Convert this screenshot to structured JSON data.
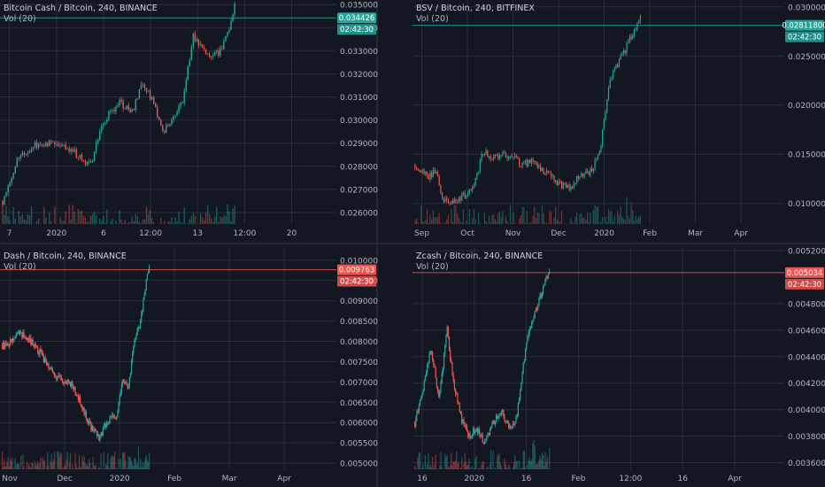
{
  "colors": {
    "background": "#131722",
    "grid": "#2a2e39",
    "text": "#b2b5be",
    "up": "#26a69a",
    "down": "#ef5350",
    "panel_border": "#363a45"
  },
  "chart_data": [
    {
      "type": "candlestick",
      "title": "Bitcoin Cash / Bitcoin, 240, BINANCE",
      "indicator": "Vol (20)",
      "accent": "#26a69a",
      "last_price": "0.034426",
      "countdown": "02:42:30",
      "ylim": [
        0.0255,
        0.0352
      ],
      "yticks": [
        "0.035000",
        "0.034000",
        "0.033000",
        "0.032000",
        "0.031000",
        "0.030000",
        "0.029000",
        "0.028000",
        "0.027000",
        "0.026000"
      ],
      "xticks": [
        "7",
        "2020",
        "6",
        "12:00",
        "13",
        "12:00",
        "20"
      ],
      "series_shape": [
        [
          0,
          0.0265
        ],
        [
          0.06,
          0.0282
        ],
        [
          0.14,
          0.0289
        ],
        [
          0.22,
          0.0291
        ],
        [
          0.3,
          0.0287
        ],
        [
          0.38,
          0.028
        ],
        [
          0.42,
          0.0297
        ],
        [
          0.5,
          0.0308
        ],
        [
          0.56,
          0.0304
        ],
        [
          0.6,
          0.0316
        ],
        [
          0.65,
          0.0307
        ],
        [
          0.69,
          0.0294
        ],
        [
          0.74,
          0.0302
        ],
        [
          0.78,
          0.031
        ],
        [
          0.82,
          0.0336
        ],
        [
          0.86,
          0.033
        ],
        [
          0.9,
          0.0327
        ],
        [
          0.94,
          0.033
        ],
        [
          0.97,
          0.0337
        ],
        [
          1.0,
          0.035
        ]
      ]
    },
    {
      "type": "candlestick",
      "title": "BSV / Bitcoin, 240, BITFINEX",
      "indicator": "Vol (20)",
      "accent": "#26a69a",
      "last_price": "0.02811800",
      "countdown": "02:42:30",
      "ylim": [
        0.0079,
        0.0307
      ],
      "yticks": [
        "0.03000000",
        "0.02500000",
        "0.02000000",
        "0.01500000",
        "0.01000000"
      ],
      "xticks": [
        "Sep",
        "Oct",
        "Nov",
        "Dec",
        "2020",
        "Feb",
        "Mar",
        "Apr"
      ],
      "series_shape": [
        [
          0,
          0.014
        ],
        [
          0.06,
          0.0128
        ],
        [
          0.1,
          0.0132
        ],
        [
          0.12,
          0.0102
        ],
        [
          0.18,
          0.0103
        ],
        [
          0.26,
          0.0115
        ],
        [
          0.3,
          0.0152
        ],
        [
          0.36,
          0.0147
        ],
        [
          0.42,
          0.015
        ],
        [
          0.48,
          0.0138
        ],
        [
          0.52,
          0.0146
        ],
        [
          0.58,
          0.013
        ],
        [
          0.64,
          0.012
        ],
        [
          0.68,
          0.0115
        ],
        [
          0.72,
          0.0125
        ],
        [
          0.78,
          0.0133
        ],
        [
          0.82,
          0.0151
        ],
        [
          0.86,
          0.022
        ],
        [
          0.9,
          0.0242
        ],
        [
          0.94,
          0.026
        ],
        [
          1.0,
          0.029
        ]
      ]
    },
    {
      "type": "candlestick",
      "title": "Dash / Bitcoin, 240, BINANCE",
      "indicator": "Vol (20)",
      "accent": "#ef5350",
      "last_price": "0.009763",
      "countdown": "02:42:30",
      "ylim": [
        0.00485,
        0.0103
      ],
      "yticks": [
        "0.010000",
        "0.009500",
        "0.009000",
        "0.008500",
        "0.008000",
        "0.007500",
        "0.007000",
        "0.006500",
        "0.006000",
        "0.005500",
        "0.005000"
      ],
      "xticks": [
        "Nov",
        "Dec",
        "2020",
        "Feb",
        "Mar",
        "Apr"
      ],
      "series_shape": [
        [
          0,
          0.0079
        ],
        [
          0.06,
          0.008
        ],
        [
          0.12,
          0.0082
        ],
        [
          0.18,
          0.00805
        ],
        [
          0.24,
          0.0078
        ],
        [
          0.3,
          0.0075
        ],
        [
          0.36,
          0.00712
        ],
        [
          0.42,
          0.007
        ],
        [
          0.48,
          0.0069
        ],
        [
          0.54,
          0.0064
        ],
        [
          0.6,
          0.0059
        ],
        [
          0.66,
          0.0056
        ],
        [
          0.72,
          0.00605
        ],
        [
          0.78,
          0.0062
        ],
        [
          0.82,
          0.00705
        ],
        [
          0.86,
          0.0069
        ],
        [
          0.9,
          0.008
        ],
        [
          0.94,
          0.0085
        ],
        [
          1.0,
          0.0099
        ]
      ]
    },
    {
      "type": "candlestick",
      "title": "Zcash / Bitcoin, 240, BINANCE",
      "indicator": "Vol (20)",
      "accent": "#ef5350",
      "last_price": "0.005034",
      "countdown": "02:42:30",
      "ylim": [
        0.00355,
        0.00522
      ],
      "yticks": [
        "0.005200",
        "0.004800",
        "0.004600",
        "0.004400",
        "0.004200",
        "0.004000",
        "0.003800",
        "0.003600"
      ],
      "xticks": [
        "16",
        "2020",
        "16",
        "Feb",
        "12:00",
        "16",
        "Apr"
      ],
      "series_shape": [
        [
          0,
          0.0039
        ],
        [
          0.06,
          0.00415
        ],
        [
          0.12,
          0.00445
        ],
        [
          0.18,
          0.0041
        ],
        [
          0.24,
          0.0046
        ],
        [
          0.28,
          0.00425
        ],
        [
          0.34,
          0.00395
        ],
        [
          0.4,
          0.0038
        ],
        [
          0.46,
          0.00385
        ],
        [
          0.52,
          0.00375
        ],
        [
          0.58,
          0.0039
        ],
        [
          0.64,
          0.004
        ],
        [
          0.7,
          0.00385
        ],
        [
          0.76,
          0.00395
        ],
        [
          0.8,
          0.0043
        ],
        [
          0.84,
          0.00455
        ],
        [
          0.88,
          0.0047
        ],
        [
          0.93,
          0.00485
        ],
        [
          1.0,
          0.00505
        ]
      ]
    }
  ]
}
